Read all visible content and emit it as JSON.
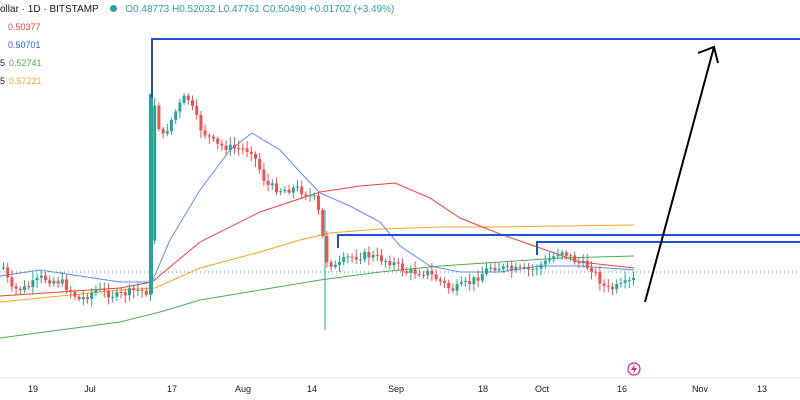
{
  "header": {
    "symbol": "ollar · 1D · BITSTAMP",
    "ohlc": "O0.48773 H0.52032 L0.47761 C0.50490 +0.01702 (+3.49%)"
  },
  "indicators": [
    {
      "prefix": "",
      "value": "0.50377",
      "color": "#e8453c"
    },
    {
      "prefix": "",
      "value": "0.50701",
      "color": "#2962ff"
    },
    {
      "prefix": "5",
      "value": "0.52741",
      "color": "#4caf50"
    },
    {
      "prefix": "5",
      "value": "0.57221",
      "color": "#f5a623"
    }
  ],
  "x_axis": {
    "labels": [
      "19",
      "Jul",
      "17",
      "Aug",
      "14",
      "Sep",
      "18",
      "Oct",
      "16",
      "Nov",
      "13"
    ]
  },
  "colors": {
    "up": "#26a69a",
    "down": "#ef5350",
    "box": "#1e4fd8",
    "arrow": "#000000"
  }
}
